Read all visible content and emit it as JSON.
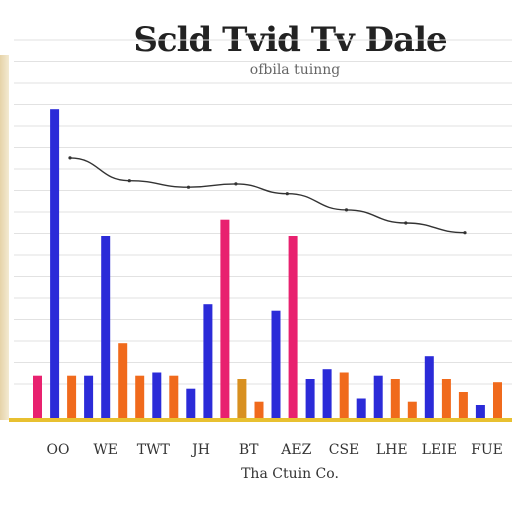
{
  "chart_data": {
    "type": "bar",
    "title": "Scld Tvid Tv Dale",
    "subtitle": "ofbila tuinng",
    "xlabel": "Tha Ctuin Co.",
    "x_tick_labels": [
      "OO",
      "WE",
      "TWT",
      "JH",
      "BT",
      "AEZ",
      "CSE",
      "LHE",
      "LEIE",
      "FUE"
    ],
    "ylim": [
      0,
      100
    ],
    "grid": true,
    "bars": [
      {
        "value": 13,
        "color": "#e8216f"
      },
      {
        "value": 95,
        "color": "#2b2bd8"
      },
      {
        "value": 13,
        "color": "#f06a1c"
      },
      {
        "value": 13,
        "color": "#2b2bd8"
      },
      {
        "value": 56,
        "color": "#2b2bd8"
      },
      {
        "value": 23,
        "color": "#f06a1c"
      },
      {
        "value": 13,
        "color": "#f06a1c"
      },
      {
        "value": 14,
        "color": "#2b2bd8"
      },
      {
        "value": 13,
        "color": "#f06a1c"
      },
      {
        "value": 9,
        "color": "#2b2bd8"
      },
      {
        "value": 35,
        "color": "#2b2bd8"
      },
      {
        "value": 61,
        "color": "#e8216f"
      },
      {
        "value": 12,
        "color": "#d89020"
      },
      {
        "value": 5,
        "color": "#f06a1c"
      },
      {
        "value": 33,
        "color": "#2b2bd8"
      },
      {
        "value": 56,
        "color": "#e8216f"
      },
      {
        "value": 12,
        "color": "#2b2bd8"
      },
      {
        "value": 15,
        "color": "#2b2bd8"
      },
      {
        "value": 14,
        "color": "#f06a1c"
      },
      {
        "value": 6,
        "color": "#2b2bd8"
      },
      {
        "value": 13,
        "color": "#2b2bd8"
      },
      {
        "value": 12,
        "color": "#f06a1c"
      },
      {
        "value": 5,
        "color": "#f06a1c"
      },
      {
        "value": 19,
        "color": "#2b2bd8"
      },
      {
        "value": 12,
        "color": "#f06a1c"
      },
      {
        "value": 8,
        "color": "#f06a1c"
      },
      {
        "value": 4,
        "color": "#2b2bd8"
      },
      {
        "value": 11,
        "color": "#f06a1c"
      }
    ],
    "trend_line": [
      {
        "x": 0,
        "y": 80
      },
      {
        "x": 0.15,
        "y": 73
      },
      {
        "x": 0.3,
        "y": 71
      },
      {
        "x": 0.42,
        "y": 72
      },
      {
        "x": 0.55,
        "y": 69
      },
      {
        "x": 0.7,
        "y": 64
      },
      {
        "x": 0.85,
        "y": 60
      },
      {
        "x": 1.0,
        "y": 57
      }
    ]
  }
}
